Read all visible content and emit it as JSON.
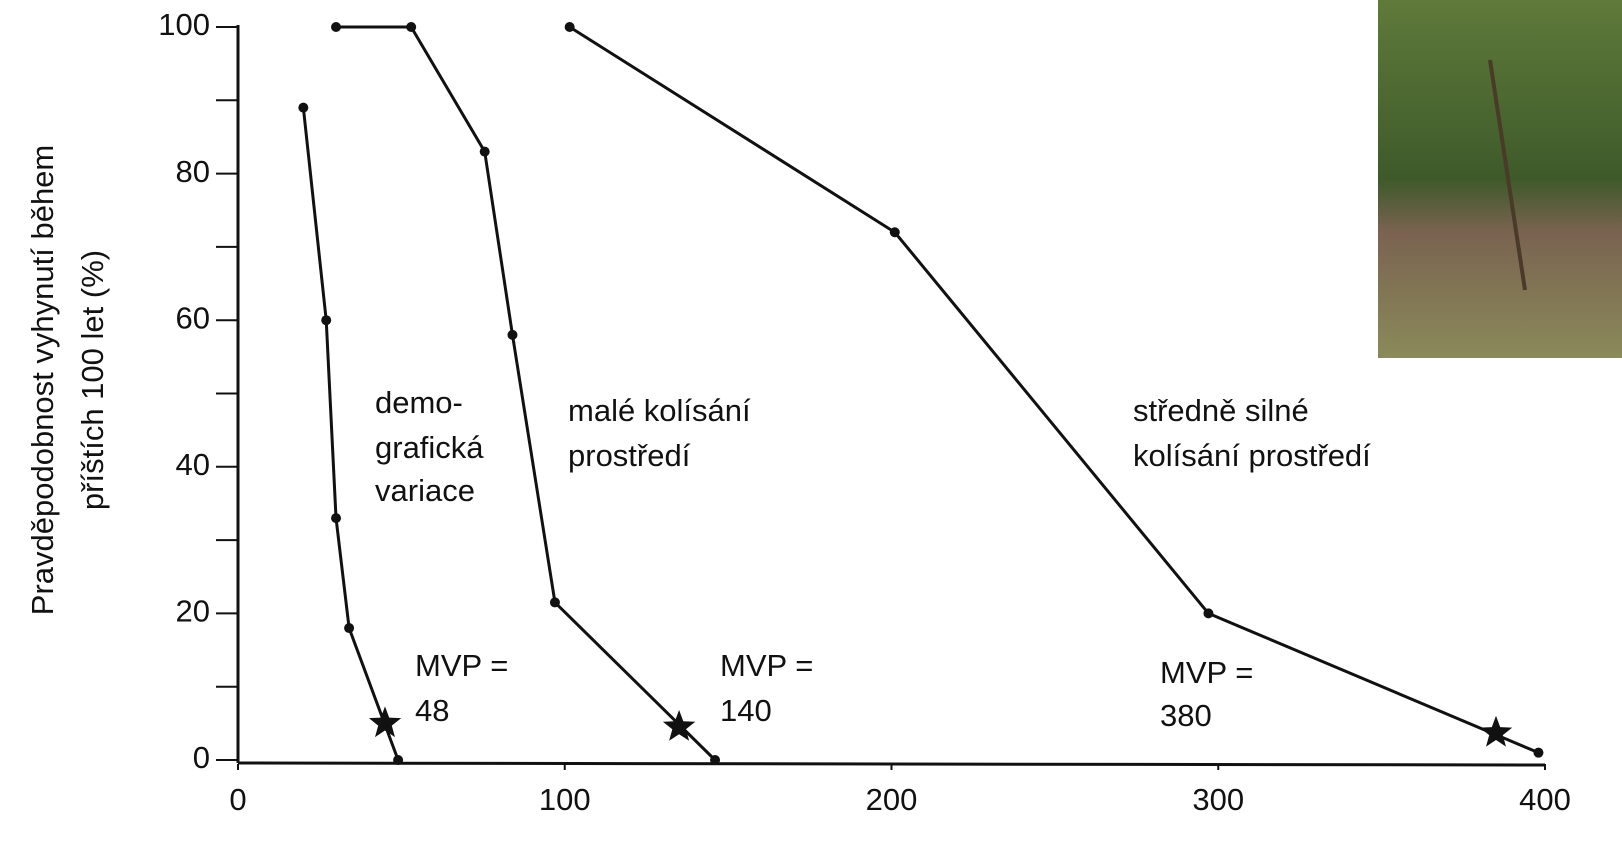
{
  "chart_data": {
    "type": "line",
    "y_label_lines": [
      "Pravděpodobnost vyhynutí během",
      "příštích 100 let (%)"
    ],
    "xlim": [
      0,
      400
    ],
    "xticks": [
      0,
      100,
      200,
      300,
      400
    ],
    "ylim": [
      0,
      100
    ],
    "yticks": [
      0,
      20,
      40,
      60,
      80,
      100
    ],
    "yminorticks": [
      10,
      30,
      50,
      70,
      90
    ],
    "color": "#111111",
    "series": [
      {
        "x": [
          20,
          27,
          30,
          34,
          49
        ],
        "values": [
          89,
          60,
          33,
          18,
          0
        ],
        "star": {
          "x": 45,
          "y": 5
        }
      },
      {
        "x": [
          30,
          53,
          75.5,
          84,
          97,
          146
        ],
        "values": [
          100,
          100,
          83,
          58,
          21.5,
          0
        ],
        "star": {
          "x": 135,
          "y": 4.5
        }
      },
      {
        "x": [
          101.5,
          201,
          297,
          398
        ],
        "values": [
          100,
          72,
          20,
          1
        ],
        "star": {
          "x": 385,
          "y": 3.7
        }
      }
    ],
    "annotations": [
      {
        "lines": [
          "demo-",
          "grafická",
          "variace"
        ]
      },
      {
        "lines": [
          "malé kolísání",
          "prostředí"
        ]
      },
      {
        "lines": [
          "středně silné",
          "kolísání prostředí"
        ]
      },
      {
        "lines": [
          "MVP =",
          "48"
        ]
      },
      {
        "lines": [
          "MVP =",
          "140"
        ]
      },
      {
        "lines": [
          "MVP =",
          "380"
        ]
      }
    ]
  }
}
